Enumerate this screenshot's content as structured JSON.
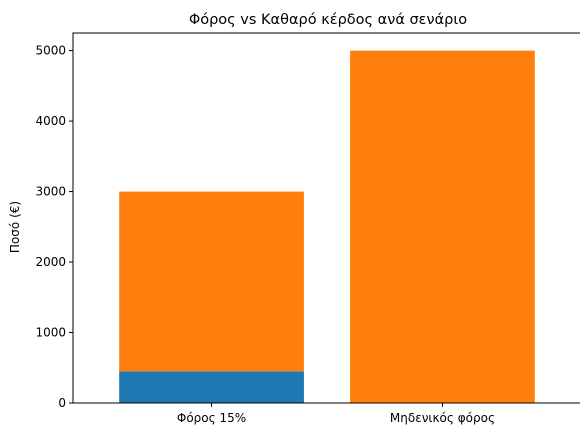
{
  "chart_data": {
    "type": "bar",
    "stacked": true,
    "title": "Φόρος vs Καθαρό κέρδος ανά σενάριο",
    "xlabel": "",
    "ylabel": "Ποσό (€)",
    "categories": [
      "Φόρος 15%",
      "Μηδενικός φόρος"
    ],
    "series": [
      {
        "values": [
          450,
          0
        ],
        "color": "#1f77b4"
      },
      {
        "values": [
          2550,
          5000
        ],
        "color": "#ff7f0e"
      }
    ],
    "ylim": [
      0,
      5250
    ],
    "yticks": [
      0,
      1000,
      2000,
      3000,
      4000,
      5000
    ],
    "grid": false,
    "legend": "none"
  }
}
